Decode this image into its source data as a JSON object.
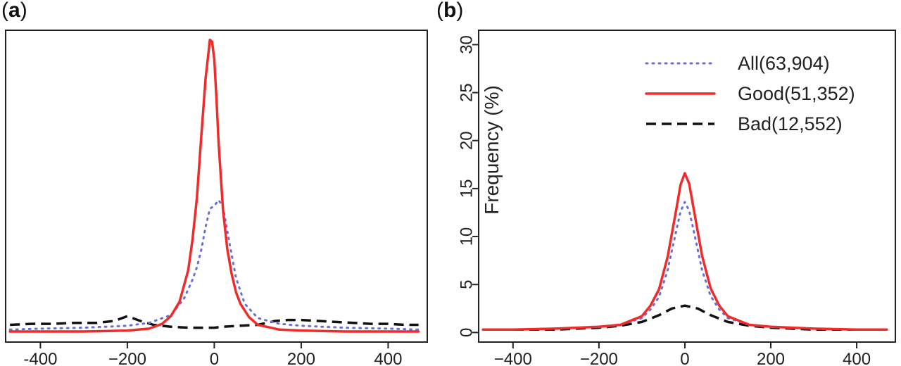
{
  "panels": [
    {
      "label_open": "(",
      "label_letter": "a",
      "label_close": ")"
    },
    {
      "label_open": "(",
      "label_letter": "b",
      "label_close": ")"
    }
  ],
  "colors": {
    "all": "#6a6fd6",
    "good": "#ef2b2b",
    "bad": "#111111",
    "axis": "#222222"
  },
  "chart_data": [
    {
      "type": "line",
      "panel": "a",
      "xlabel": "",
      "ylabel": "",
      "xlim": [
        -480,
        490
      ],
      "ylim": [
        -1,
        31.5
      ],
      "x_ticks": [
        -400,
        -200,
        0,
        200,
        400
      ],
      "x_tick_labels": [
        "-400",
        "−200",
        "0",
        "200",
        "400"
      ],
      "y_ticks": [],
      "grid": false,
      "series": [
        {
          "name": "All(63,904)",
          "style": "dotted",
          "color_key": "all",
          "x": [
            -470,
            -400,
            -300,
            -200,
            -150,
            -100,
            -70,
            -50,
            -40,
            -30,
            -20,
            -10,
            0,
            10,
            20,
            30,
            40,
            50,
            70,
            100,
            150,
            200,
            300,
            400,
            470
          ],
          "y": [
            0.3,
            0.4,
            0.5,
            0.7,
            1.0,
            1.8,
            3.5,
            5.5,
            6.8,
            8.6,
            11.0,
            12.9,
            13.2,
            13.8,
            13.1,
            10.6,
            8.1,
            5.7,
            3.0,
            1.5,
            0.9,
            0.7,
            0.5,
            0.4,
            0.3
          ]
        },
        {
          "name": "Good(51,352)",
          "style": "solid",
          "color_key": "good",
          "x": [
            -470,
            -400,
            -300,
            -200,
            -150,
            -120,
            -100,
            -80,
            -60,
            -50,
            -40,
            -30,
            -20,
            -10,
            -5,
            0,
            5,
            10,
            20,
            30,
            40,
            50,
            60,
            80,
            100,
            150,
            200,
            300,
            400,
            470
          ],
          "y": [
            0.1,
            0.1,
            0.1,
            0.2,
            0.4,
            0.9,
            1.7,
            3.2,
            6.5,
            9.7,
            14.0,
            20.4,
            26.5,
            30.5,
            30.3,
            28.5,
            24.4,
            19.7,
            12.8,
            8.7,
            6.1,
            4.2,
            3.0,
            1.6,
            0.8,
            0.3,
            0.2,
            0.1,
            0.1,
            0.1
          ]
        },
        {
          "name": "Bad(12,552)",
          "style": "dashed",
          "color_key": "bad",
          "x": [
            -470,
            -420,
            -370,
            -320,
            -270,
            -230,
            -200,
            -170,
            -140,
            -100,
            -60,
            -20,
            0,
            20,
            60,
            100,
            140,
            170,
            200,
            240,
            280,
            320,
            360,
            400,
            440,
            470
          ],
          "y": [
            0.8,
            0.9,
            0.9,
            1.0,
            1.0,
            1.2,
            1.7,
            1.2,
            0.8,
            0.6,
            0.5,
            0.5,
            0.5,
            0.6,
            0.7,
            0.8,
            1.2,
            1.3,
            1.3,
            1.2,
            1.1,
            1.0,
            0.9,
            0.9,
            0.8,
            0.8
          ]
        }
      ]
    },
    {
      "type": "line",
      "panel": "b",
      "xlabel": "",
      "ylabel": "Frequency (%)",
      "xlim": [
        -480,
        490
      ],
      "ylim": [
        -1,
        31.5
      ],
      "x_ticks": [
        -400,
        -200,
        0,
        200,
        400
      ],
      "x_tick_labels": [
        "−400",
        "−200",
        "0",
        "200",
        "400"
      ],
      "y_ticks": [
        0,
        5,
        10,
        15,
        20,
        25,
        30
      ],
      "y_tick_labels": [
        "0",
        "5",
        "10",
        "15",
        "20",
        "25",
        "30"
      ],
      "grid": false,
      "legend_position": "top-right",
      "series": [
        {
          "name": "All(63,904)",
          "style": "dotted",
          "color_key": "all",
          "x": [
            -470,
            -400,
            -300,
            -200,
            -150,
            -100,
            -80,
            -60,
            -40,
            -20,
            -10,
            0,
            10,
            20,
            40,
            60,
            80,
            100,
            150,
            200,
            300,
            400,
            470
          ],
          "y": [
            0.3,
            0.3,
            0.4,
            0.6,
            0.8,
            1.5,
            2.4,
            3.7,
            6.5,
            10.6,
            12.6,
            13.6,
            12.7,
            10.7,
            6.5,
            3.8,
            2.4,
            1.5,
            0.8,
            0.6,
            0.4,
            0.3,
            0.3
          ]
        },
        {
          "name": "Good(51,352)",
          "style": "solid",
          "color_key": "good",
          "x": [
            -470,
            -400,
            -300,
            -200,
            -150,
            -100,
            -80,
            -60,
            -40,
            -20,
            -10,
            0,
            10,
            20,
            40,
            60,
            80,
            100,
            150,
            200,
            300,
            400,
            470
          ],
          "y": [
            0.3,
            0.3,
            0.4,
            0.6,
            0.8,
            1.7,
            2.8,
            4.5,
            7.9,
            12.8,
            15.4,
            16.6,
            15.5,
            13.0,
            8.0,
            4.6,
            2.8,
            1.7,
            0.8,
            0.6,
            0.4,
            0.3,
            0.3
          ]
        },
        {
          "name": "Bad(12,552)",
          "style": "dashed",
          "color_key": "bad",
          "x": [
            -470,
            -400,
            -300,
            -200,
            -150,
            -100,
            -60,
            -30,
            0,
            30,
            60,
            100,
            150,
            200,
            300,
            400,
            470
          ],
          "y": [
            0.3,
            0.3,
            0.3,
            0.5,
            0.7,
            1.1,
            1.8,
            2.5,
            2.8,
            2.5,
            1.8,
            1.1,
            0.7,
            0.5,
            0.3,
            0.3,
            0.3
          ]
        }
      ]
    }
  ]
}
